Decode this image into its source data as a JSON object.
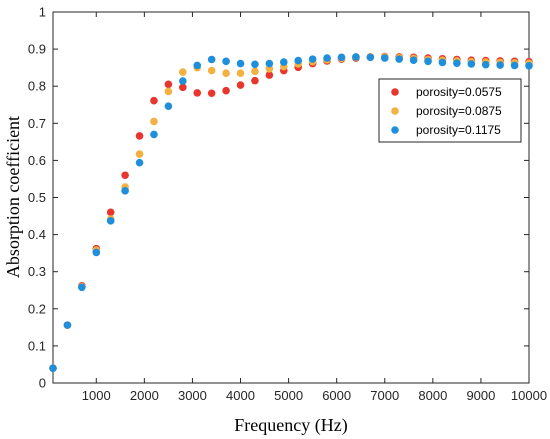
{
  "chart_data": {
    "type": "scatter",
    "title": "",
    "xlabel": "Frequency (Hz)",
    "ylabel": "Absorption coefficient",
    "xlim": [
      100,
      10000
    ],
    "ylim": [
      0,
      1
    ],
    "xticks": [
      1000,
      2000,
      3000,
      4000,
      5000,
      6000,
      7000,
      8000,
      9000,
      10000
    ],
    "yticks": [
      0,
      0.1,
      0.2,
      0.3,
      0.4,
      0.5,
      0.6,
      0.7,
      0.8,
      0.9,
      1
    ],
    "ytick_labels": [
      "0",
      "0.1",
      "0.2",
      "0.3",
      "0.4",
      "0.5",
      "0.6",
      "0.7",
      "0.8",
      "0.9",
      "1"
    ],
    "grid": false,
    "legend_position": "top-right",
    "x": [
      100,
      400,
      700,
      1000,
      1300,
      1600,
      1900,
      2200,
      2500,
      2800,
      3100,
      3400,
      3700,
      4000,
      4300,
      4600,
      4900,
      5200,
      5500,
      5800,
      6100,
      6400,
      6700,
      7000,
      7300,
      7600,
      7900,
      8200,
      8500,
      8800,
      9100,
      9400,
      9700,
      10000
    ],
    "series": [
      {
        "name": "porosity=0.0575",
        "color": "#e8352e",
        "values": [
          0.04,
          0.156,
          0.262,
          0.362,
          0.46,
          0.56,
          0.666,
          0.761,
          0.805,
          0.797,
          0.782,
          0.781,
          0.788,
          0.803,
          0.815,
          0.83,
          0.842,
          0.851,
          0.861,
          0.868,
          0.873,
          0.876,
          0.879,
          0.88,
          0.879,
          0.878,
          0.876,
          0.874,
          0.872,
          0.87,
          0.869,
          0.868,
          0.867,
          0.866
        ]
      },
      {
        "name": "porosity=0.0875",
        "color": "#f4b041",
        "values": [
          0.04,
          0.156,
          0.26,
          0.358,
          0.442,
          0.528,
          0.617,
          0.705,
          0.786,
          0.838,
          0.85,
          0.842,
          0.835,
          0.835,
          0.84,
          0.847,
          0.853,
          0.86,
          0.866,
          0.871,
          0.875,
          0.878,
          0.879,
          0.879,
          0.877,
          0.875,
          0.872,
          0.87,
          0.868,
          0.866,
          0.865,
          0.864,
          0.863,
          0.862
        ]
      },
      {
        "name": "porosity=0.1175",
        "color": "#1f8fdb",
        "values": [
          0.04,
          0.156,
          0.258,
          0.352,
          0.437,
          0.518,
          0.594,
          0.67,
          0.746,
          0.814,
          0.856,
          0.872,
          0.867,
          0.861,
          0.859,
          0.861,
          0.865,
          0.869,
          0.873,
          0.876,
          0.878,
          0.879,
          0.878,
          0.876,
          0.873,
          0.87,
          0.867,
          0.864,
          0.862,
          0.86,
          0.858,
          0.857,
          0.856,
          0.855
        ]
      }
    ]
  }
}
